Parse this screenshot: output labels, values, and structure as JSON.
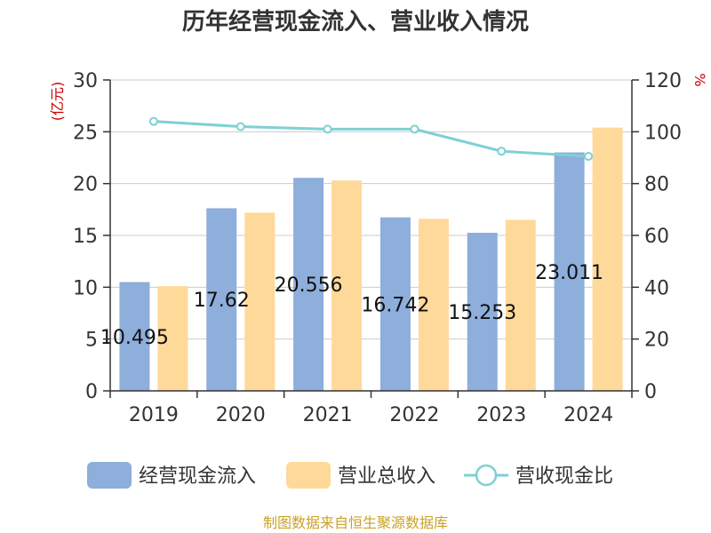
{
  "chart_data": {
    "type": "bar",
    "title": "历年经营现金流入、营业收入情况",
    "categories": [
      "2019",
      "2020",
      "2021",
      "2022",
      "2023",
      "2024"
    ],
    "series": [
      {
        "name": "经营现金流入",
        "type": "bar",
        "axis": "left",
        "color": "#8eaedb",
        "values": [
          10.495,
          17.62,
          20.556,
          16.742,
          15.253,
          23.011
        ],
        "labels": [
          "10.495",
          "17.62",
          "20.556",
          "16.742",
          "15.253",
          "23.011"
        ]
      },
      {
        "name": "营业总收入",
        "type": "bar",
        "axis": "left",
        "color": "#ffd999",
        "values": [
          10.1,
          17.2,
          20.3,
          16.6,
          16.5,
          25.4
        ]
      },
      {
        "name": "营收现金比",
        "type": "line",
        "axis": "right",
        "color": "#7fd0d3",
        "values": [
          104,
          102,
          101,
          101,
          92.5,
          90.5
        ]
      }
    ],
    "ylabel_left": "(亿元)",
    "ylabel_right": "%",
    "ylim_left": [
      0,
      30
    ],
    "yticks_left": [
      "0",
      "5",
      "10",
      "15",
      "20",
      "25",
      "30"
    ],
    "ylim_right": [
      0,
      120
    ],
    "yticks_right": [
      "0",
      "20",
      "40",
      "60",
      "80",
      "100",
      "120"
    ],
    "grid": true,
    "legend_position": "bottom"
  },
  "source_note": "制图数据来自恒生聚源数据库",
  "colors": {
    "title": "#333333",
    "axis_unit": "#cc0000",
    "axis": "#333333",
    "grid": "#cccccc",
    "source": "#c9a227",
    "marker_fill": "#ffffff"
  }
}
